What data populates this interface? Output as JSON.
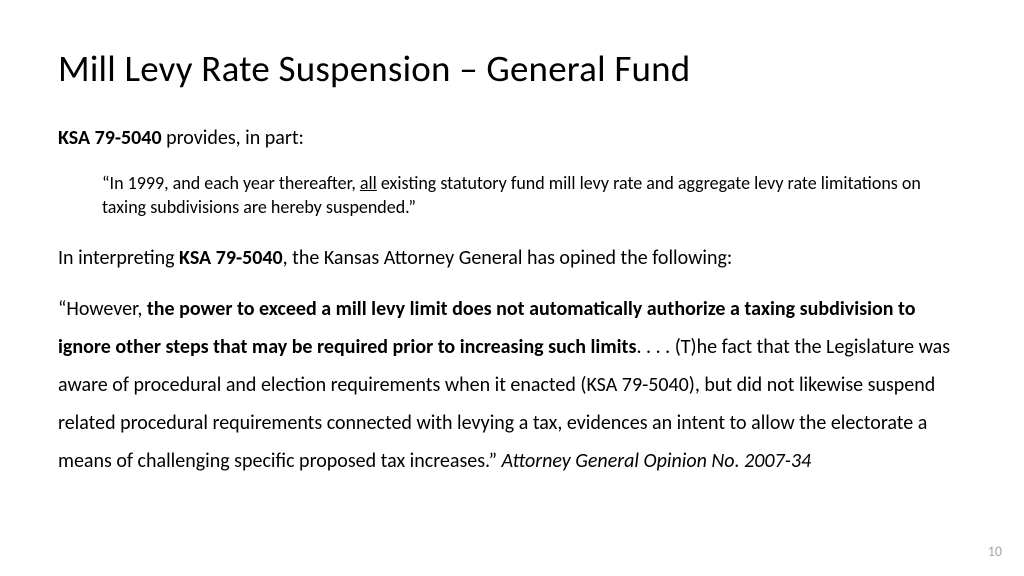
{
  "title": "Mill Levy Rate Suspension – General Fund",
  "intro_stat": "KSA 79-5040",
  "intro_rest": " provides, in part:",
  "quote_pre": "“In 1999, and each year thereafter, ",
  "quote_ul": "all",
  "quote_post": " existing statutory fund mill levy rate and aggregate levy rate limitations on taxing subdivisions are hereby suspended.”",
  "interp_pre": "In interpreting ",
  "interp_stat": "KSA 79-5040",
  "interp_post": ", the Kansas Attorney General has opined the following:",
  "op_open": "“However, ",
  "op_bold": "the power to exceed a mill levy limit does not automatically authorize a taxing subdivision to ignore other steps that may be required prior to increasing such limits",
  "op_mid": ". . . . (T)he fact that the Legislature was aware of procedural and election requirements when it enacted (KSA 79-5040), but did not likewise suspend related procedural requirements connected with levying a tax, evidences an intent to allow the electorate a means of challenging specific proposed tax increases.”   ",
  "op_cite": "Attorney General Opinion No. 2007-34",
  "page_number": "10",
  "colors": {
    "text": "#000000",
    "bg": "#ffffff",
    "pagenum": "#a6a6a6"
  },
  "typography": {
    "title_size_pt": 28,
    "body_size_pt": 15,
    "quote_size_pt": 13.5,
    "line_height_body": 1.9
  }
}
